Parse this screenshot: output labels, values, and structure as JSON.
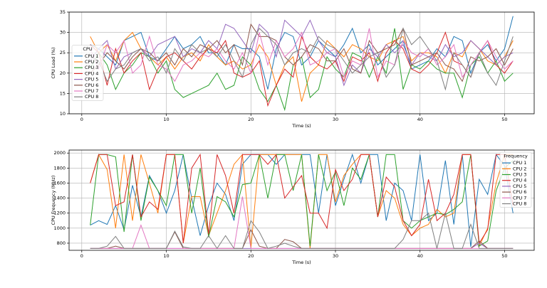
{
  "chart_data": [
    {
      "type": "line",
      "xlabel": "Time (s)",
      "ylabel": "CPU Load (%)",
      "legend_title": "CPU",
      "legend_loc": "center left",
      "grid": true,
      "x": [
        1,
        2,
        3,
        4,
        5,
        6,
        7,
        8,
        9,
        10,
        11,
        12,
        13,
        14,
        15,
        16,
        17,
        18,
        19,
        20,
        21,
        22,
        23,
        24,
        25,
        26,
        27,
        28,
        29,
        30,
        31,
        32,
        33,
        34,
        35,
        36,
        37,
        38,
        39,
        40,
        41,
        42,
        43,
        44,
        45,
        46,
        47,
        48,
        49,
        50,
        51
      ],
      "xlim": [
        -1.5,
        53.5
      ],
      "xticks": [
        0,
        10,
        20,
        30,
        40,
        50
      ],
      "ylim": [
        10,
        35
      ],
      "yticks": [
        10,
        15,
        20,
        25,
        30,
        35
      ],
      "series": [
        {
          "name": "CPU 1",
          "color": "#1f77b4",
          "values": [
            27,
            26,
            24,
            22,
            28,
            29,
            30,
            24,
            23,
            26,
            29,
            26,
            27,
            29,
            25,
            25,
            22,
            27,
            26,
            26,
            24,
            16,
            26,
            30,
            29,
            22,
            24,
            28,
            26,
            24,
            27,
            31,
            25,
            27,
            22,
            24,
            26,
            28,
            21,
            22,
            23,
            26,
            24,
            29,
            28,
            20,
            25,
            27,
            23,
            26,
            34
          ]
        },
        {
          "name": "CPU 2",
          "color": "#ff7f0e",
          "values": [
            29,
            25,
            27,
            23,
            28,
            30,
            26,
            24,
            22,
            24,
            21,
            24,
            25,
            23,
            27,
            24,
            22,
            23,
            21,
            22,
            27,
            24,
            17,
            22,
            24,
            13,
            20,
            22,
            28,
            26,
            24,
            27,
            26,
            24,
            23,
            27,
            28,
            29,
            23,
            25,
            25,
            24,
            20,
            25,
            24,
            28,
            26,
            23,
            22,
            24,
            28
          ]
        },
        {
          "name": "CPU 3",
          "color": "#2ca02c",
          "values": [
            21,
            25,
            22,
            16,
            20,
            22,
            25,
            24,
            20,
            23,
            16,
            14,
            15,
            16,
            17,
            20,
            16,
            17,
            24,
            22,
            16,
            13,
            17,
            11,
            22,
            24,
            14,
            16,
            24,
            21,
            19,
            25,
            24,
            19,
            24,
            20,
            31,
            16,
            22,
            21,
            23,
            21,
            20,
            20,
            14,
            22,
            24,
            20,
            23,
            18,
            20
          ]
        },
        {
          "name": "CPU 4",
          "color": "#d62728",
          "values": [
            27,
            25,
            17,
            26,
            20,
            23,
            25,
            16,
            21,
            24,
            25,
            23,
            21,
            24,
            26,
            25,
            28,
            20,
            19,
            20,
            23,
            12,
            17,
            21,
            19,
            29,
            24,
            22,
            21,
            23,
            18,
            24,
            23,
            25,
            18,
            25,
            28,
            26,
            21,
            20,
            22,
            25,
            30,
            23,
            22,
            19,
            25,
            28,
            22,
            20,
            23
          ]
        },
        {
          "name": "CPU 5",
          "color": "#9467bd",
          "values": [
            23,
            26,
            28,
            21,
            24,
            25,
            26,
            24,
            27,
            28,
            29,
            24,
            26,
            25,
            28,
            26,
            32,
            31,
            28,
            25,
            32,
            30,
            24,
            33,
            31,
            29,
            33,
            28,
            25,
            24,
            17,
            22,
            20,
            26,
            24,
            27,
            25,
            27,
            22,
            25,
            24,
            23,
            27,
            24,
            25,
            28,
            26,
            24,
            22,
            24,
            25
          ]
        },
        {
          "name": "CPU 6",
          "color": "#8c564b",
          "values": [
            20,
            22,
            25,
            23,
            21,
            24,
            26,
            25,
            23,
            25,
            22,
            26,
            24,
            27,
            26,
            28,
            25,
            27,
            22,
            32,
            29,
            29,
            28,
            24,
            22,
            24,
            27,
            26,
            23,
            23,
            26,
            21,
            20,
            28,
            25,
            26,
            27,
            31,
            22,
            23,
            24,
            25,
            22,
            21,
            18,
            24,
            23,
            24,
            26,
            22,
            26
          ]
        },
        {
          "name": "CPU 7",
          "color": "#e377c2",
          "values": [
            26,
            21,
            27,
            25,
            28,
            20,
            22,
            29,
            22,
            21,
            18,
            22,
            23,
            25,
            24,
            26,
            23,
            21,
            25,
            20,
            30,
            22,
            28,
            24,
            26,
            30,
            22,
            23,
            25,
            26,
            19,
            23,
            22,
            31,
            19,
            23,
            22,
            28,
            25,
            24,
            26,
            22,
            24,
            27,
            19,
            22,
            25,
            28,
            24,
            21,
            23
          ]
        },
        {
          "name": "CPU 8",
          "color": "#7f7f7f",
          "values": [
            24,
            23,
            18,
            21,
            22,
            25,
            26,
            23,
            24,
            20,
            26,
            23,
            27,
            25,
            26,
            24,
            27,
            23,
            19,
            27,
            31,
            29,
            27,
            22,
            25,
            26,
            25,
            29,
            27,
            26,
            23,
            20,
            22,
            24,
            25,
            19,
            22,
            31,
            27,
            29,
            26,
            23,
            16,
            25,
            22,
            19,
            25,
            20,
            17,
            23,
            29
          ]
        }
      ]
    },
    {
      "type": "line",
      "xlabel": "Time (s)",
      "ylabel": "CPU Frequency (MHz)",
      "legend_title": "Frequency",
      "legend_loc": "upper right",
      "grid": true,
      "x": [
        1,
        2,
        3,
        4,
        5,
        6,
        7,
        8,
        9,
        10,
        11,
        12,
        13,
        14,
        15,
        16,
        17,
        18,
        19,
        20,
        21,
        22,
        23,
        24,
        25,
        26,
        27,
        28,
        29,
        30,
        31,
        32,
        33,
        34,
        35,
        36,
        37,
        38,
        39,
        40,
        41,
        42,
        43,
        44,
        45,
        46,
        47,
        48,
        49,
        50,
        51
      ],
      "xlim": [
        -1.5,
        53.5
      ],
      "xticks": [
        0,
        10,
        20,
        30,
        40,
        50
      ],
      "ylim": [
        705,
        2040
      ],
      "yticks": [
        800,
        1000,
        1200,
        1400,
        1600,
        1800,
        2000
      ],
      "series": [
        {
          "name": "CPU 1",
          "color": "#1f77b4",
          "values": [
            1040,
            1100,
            1050,
            1300,
            980,
            1570,
            1150,
            1700,
            1500,
            1200,
            1500,
            1980,
            1400,
            900,
            1300,
            1600,
            1450,
            1100,
            1850,
            1980,
            1980,
            1980,
            1850,
            1980,
            1980,
            1980,
            1980,
            1200,
            1980,
            1300,
            1650,
            1980,
            1600,
            1980,
            1980,
            1100,
            1600,
            1500,
            1100,
            1980,
            1100,
            1200,
            1900,
            1050,
            1980,
            750,
            1650,
            1450,
            1980,
            1830,
            1200
          ]
        },
        {
          "name": "CPU 2",
          "color": "#ff7f0e",
          "values": [
            1600,
            1980,
            1780,
            1000,
            1980,
            1100,
            1980,
            1600,
            1200,
            1980,
            1980,
            800,
            1420,
            1420,
            900,
            1200,
            1500,
            1850,
            1980,
            730,
            1980,
            1980,
            1980,
            1980,
            1980,
            1980,
            730,
            1980,
            1980,
            1350,
            1700,
            1850,
            1980,
            1980,
            1150,
            1500,
            1400,
            1050,
            900,
            1000,
            1050,
            1250,
            1150,
            1200,
            1980,
            1980,
            760,
            1000,
            1600,
            1980,
            1980
          ]
        },
        {
          "name": "CPU 3",
          "color": "#2ca02c",
          "values": [
            1040,
            1980,
            1980,
            1950,
            950,
            1980,
            1100,
            1680,
            1500,
            1300,
            1980,
            1980,
            1200,
            1800,
            880,
            1420,
            1350,
            1150,
            1580,
            1600,
            1980,
            1400,
            1980,
            1980,
            1500,
            1980,
            760,
            1980,
            1500,
            1750,
            1300,
            1800,
            1650,
            1980,
            1150,
            1980,
            1980,
            1100,
            1000,
            1100,
            1150,
            1200,
            1180,
            1250,
            1350,
            1980,
            760,
            830,
            1500,
            1800,
            1900
          ]
        },
        {
          "name": "CPU 4",
          "color": "#d62728",
          "values": [
            1600,
            1980,
            1980,
            1300,
            1350,
            1980,
            1150,
            1350,
            1250,
            1980,
            1980,
            800,
            1800,
            1980,
            920,
            1980,
            1700,
            1200,
            1980,
            1980,
            1980,
            1850,
            1980,
            1400,
            1550,
            1700,
            1200,
            1200,
            1000,
            1780,
            1500,
            1650,
            1980,
            1980,
            1150,
            1680,
            1550,
            1100,
            900,
            1050,
            1650,
            1100,
            1200,
            1450,
            1980,
            1980,
            800,
            980,
            1980,
            1980,
            1300
          ]
        },
        {
          "name": "CPU 5",
          "color": "#9467bd",
          "values": [
            730,
            730,
            730,
            730,
            730,
            730,
            730,
            730,
            730,
            730,
            730,
            730,
            730,
            730,
            730,
            730,
            730,
            730,
            730,
            730,
            730,
            730,
            730,
            730,
            730,
            730,
            730,
            730,
            730,
            730,
            730,
            730,
            730,
            730,
            730,
            730,
            730,
            730,
            730,
            730,
            730,
            730,
            730,
            730,
            730,
            730,
            800,
            730,
            730,
            730,
            730
          ]
        },
        {
          "name": "CPU 6",
          "color": "#8c564b",
          "values": [
            730,
            730,
            730,
            760,
            730,
            730,
            730,
            730,
            730,
            730,
            950,
            730,
            730,
            730,
            730,
            730,
            730,
            730,
            730,
            980,
            760,
            730,
            730,
            850,
            820,
            730,
            730,
            730,
            730,
            730,
            730,
            730,
            730,
            730,
            730,
            730,
            730,
            730,
            730,
            730,
            730,
            730,
            730,
            730,
            730,
            730,
            830,
            730,
            730,
            730,
            730
          ]
        },
        {
          "name": "CPU 7",
          "color": "#e377c2",
          "values": [
            730,
            730,
            730,
            730,
            730,
            730,
            1040,
            730,
            730,
            730,
            730,
            730,
            730,
            730,
            730,
            730,
            730,
            730,
            1420,
            730,
            730,
            730,
            730,
            730,
            730,
            730,
            730,
            730,
            730,
            730,
            730,
            730,
            730,
            730,
            730,
            730,
            730,
            730,
            730,
            730,
            730,
            730,
            730,
            730,
            730,
            730,
            730,
            730,
            730,
            730,
            730
          ]
        },
        {
          "name": "CPU 8",
          "color": "#7f7f7f",
          "values": [
            730,
            730,
            760,
            890,
            730,
            730,
            730,
            730,
            730,
            730,
            960,
            750,
            730,
            730,
            900,
            730,
            900,
            730,
            730,
            1100,
            950,
            730,
            760,
            800,
            760,
            730,
            730,
            730,
            730,
            730,
            730,
            730,
            730,
            730,
            730,
            730,
            730,
            850,
            1100,
            1100,
            1200,
            730,
            1200,
            730,
            730,
            1050,
            730,
            730,
            730,
            730,
            730
          ]
        }
      ]
    }
  ]
}
